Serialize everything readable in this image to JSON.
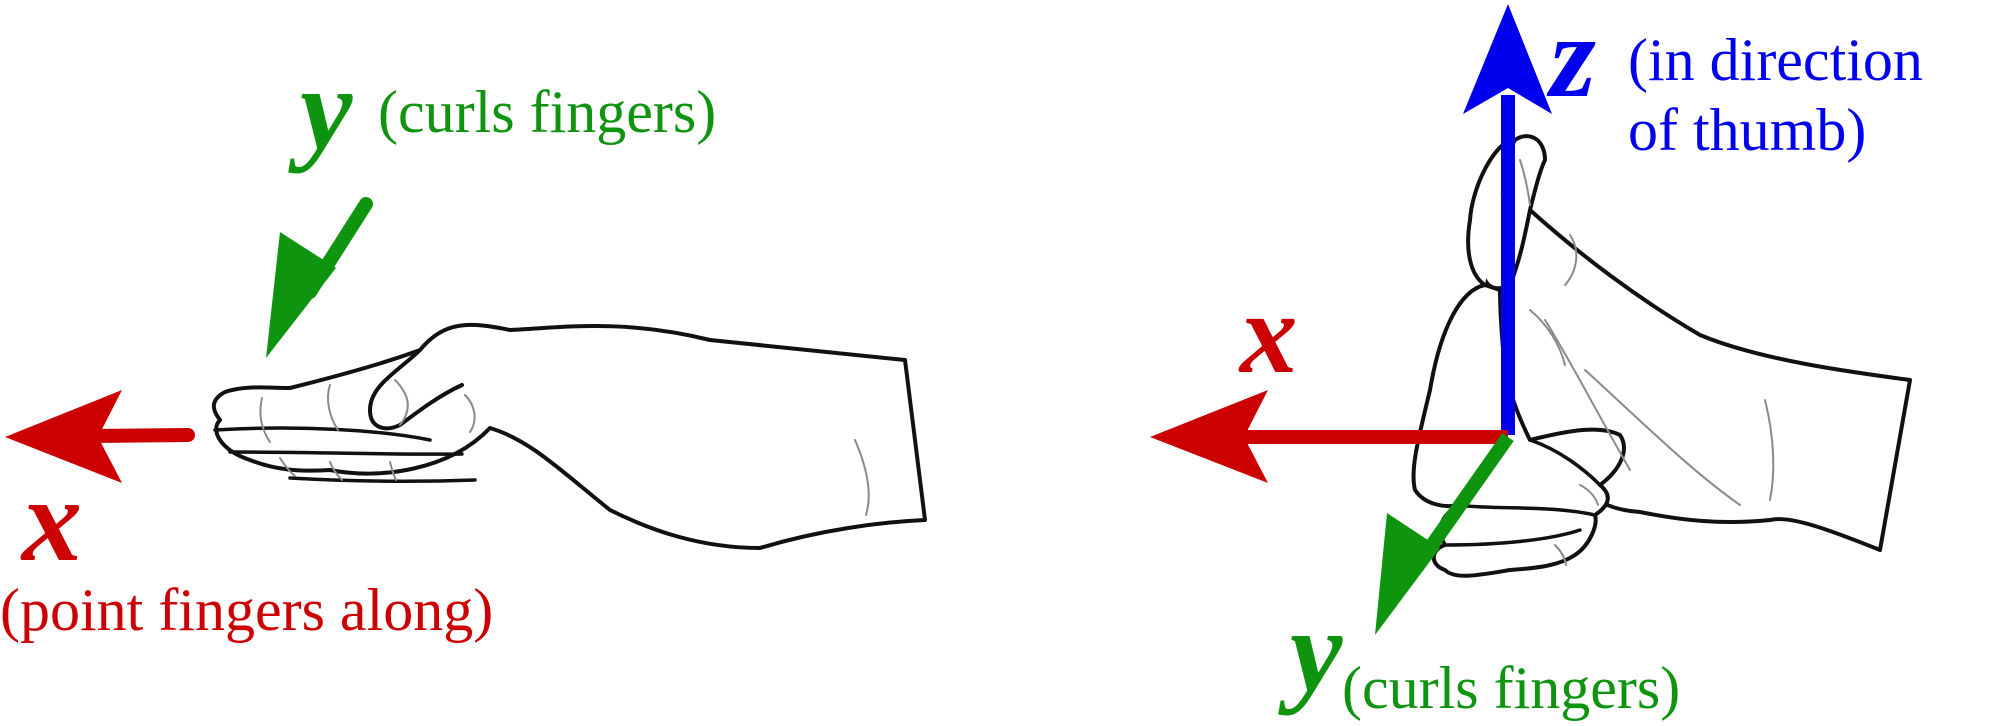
{
  "colors": {
    "x_axis": "#cc0000",
    "y_axis": "#0f9410",
    "z_axis": "#0000ee",
    "outline": "#111111",
    "detail": "#8a8a8a"
  },
  "left_hand": {
    "y_letter": "y",
    "y_note": "(curls fingers)",
    "x_letter": "x",
    "x_note": "(point fingers along)"
  },
  "right_hand": {
    "z_letter": "z",
    "z_note_line1": "(in direction",
    "z_note_line2": "of thumb)",
    "x_letter": "x",
    "y_letter": "y",
    "y_note": "(curls fingers)"
  }
}
